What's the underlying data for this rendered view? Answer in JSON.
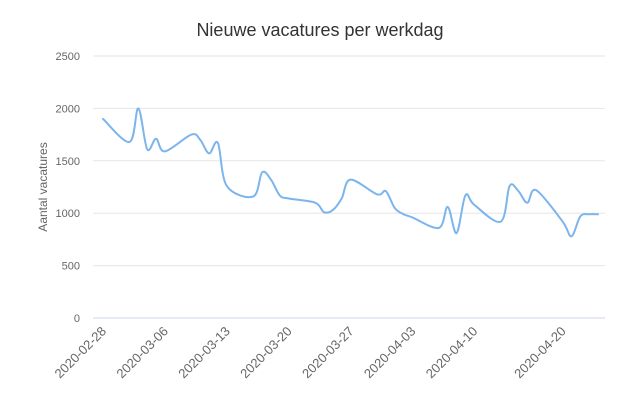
{
  "chart_data": {
    "type": "line",
    "title": "Nieuwe vacatures per werkdag",
    "xlabel": "",
    "ylabel": "Aantal vacatures",
    "ylim": [
      0,
      2500
    ],
    "yticks": [
      0,
      500,
      1000,
      1500,
      2000,
      2500
    ],
    "grid": true,
    "legend": "none",
    "x_tick_labels": [
      "2020-02-28",
      "2020-03-06",
      "2020-03-13",
      "2020-03-20",
      "2020-03-27",
      "2020-04-03",
      "2020-04-10",
      "2020-04-20"
    ],
    "x": [
      "2020-02-28",
      "2020-03-02",
      "2020-03-03",
      "2020-03-04",
      "2020-03-05",
      "2020-03-06",
      "2020-03-09",
      "2020-03-10",
      "2020-03-11",
      "2020-03-12",
      "2020-03-13",
      "2020-03-16",
      "2020-03-17",
      "2020-03-18",
      "2020-03-19",
      "2020-03-20",
      "2020-03-23",
      "2020-03-24",
      "2020-03-25",
      "2020-03-26",
      "2020-03-27",
      "2020-03-30",
      "2020-03-31",
      "2020-04-01",
      "2020-04-02",
      "2020-04-03",
      "2020-04-06",
      "2020-04-07",
      "2020-04-08",
      "2020-04-09",
      "2020-04-10",
      "2020-04-13",
      "2020-04-14",
      "2020-04-15",
      "2020-04-16",
      "2020-04-17",
      "2020-04-20",
      "2020-04-21",
      "2020-04-22",
      "2020-04-23",
      "2020-04-24"
    ],
    "series": [
      {
        "color": "#7cb5ec",
        "values": [
          1900,
          1680,
          2000,
          1610,
          1710,
          1590,
          1750,
          1700,
          1570,
          1670,
          1260,
          1160,
          1390,
          1320,
          1170,
          1140,
          1100,
          1010,
          1030,
          1140,
          1320,
          1180,
          1210,
          1050,
          990,
          960,
          860,
          1060,
          810,
          1170,
          1080,
          920,
          1260,
          1210,
          1100,
          1220,
          920,
          780,
          970,
          990,
          990
        ]
      }
    ]
  }
}
